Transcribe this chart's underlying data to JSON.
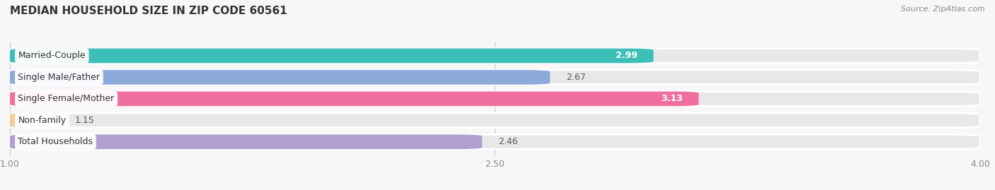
{
  "title": "MEDIAN HOUSEHOLD SIZE IN ZIP CODE 60561",
  "source": "Source: ZipAtlas.com",
  "categories": [
    "Married-Couple",
    "Single Male/Father",
    "Single Female/Mother",
    "Non-family",
    "Total Households"
  ],
  "values": [
    2.99,
    2.67,
    3.13,
    1.15,
    2.46
  ],
  "bar_colors": [
    "#3dbfb8",
    "#8eaadb",
    "#f06fa0",
    "#f5c99a",
    "#b09fd0"
  ],
  "value_label_inside": [
    true,
    false,
    true,
    false,
    false
  ],
  "value_text_colors": [
    "#ffffff",
    "#666666",
    "#ffffff",
    "#666666",
    "#666666"
  ],
  "xlim": [
    1.0,
    4.0
  ],
  "xticks": [
    1.0,
    2.5,
    4.0
  ],
  "xtick_labels": [
    "1.00",
    "2.50",
    "4.00"
  ],
  "background_color": "#f7f7f7",
  "bar_bg_color": "#e8e8e8",
  "title_fontsize": 11,
  "label_fontsize": 9,
  "value_fontsize": 9,
  "source_fontsize": 8
}
